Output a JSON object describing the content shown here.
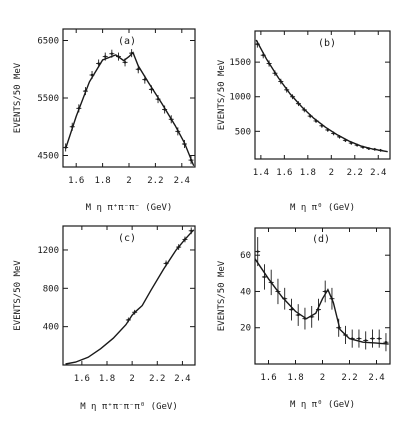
{
  "chart_data": [
    {
      "type": "scatter",
      "panel_label": "(a)",
      "xlabel": "M η π⁺π⁻π⁻ (GeV)",
      "ylabel": "EVENTS/50 MeV",
      "xlim": [
        1.5,
        2.5
      ],
      "ylim": [
        4300,
        6700
      ],
      "x_ticks": [
        1.6,
        1.8,
        2.0,
        2.2,
        2.4
      ],
      "x_tick_labels": [
        "1.6",
        "1.8",
        "2",
        "2.2",
        "2.4"
      ],
      "y_ticks": [
        4500,
        5500,
        6500
      ],
      "y_tick_labels": [
        "4500",
        "5500",
        "6500"
      ],
      "points": [
        {
          "x": 1.52,
          "y": 4640,
          "err": 70
        },
        {
          "x": 1.57,
          "y": 5000,
          "err": 70
        },
        {
          "x": 1.62,
          "y": 5320,
          "err": 70
        },
        {
          "x": 1.67,
          "y": 5620,
          "err": 70
        },
        {
          "x": 1.72,
          "y": 5900,
          "err": 70
        },
        {
          "x": 1.77,
          "y": 6100,
          "err": 70
        },
        {
          "x": 1.82,
          "y": 6220,
          "err": 70
        },
        {
          "x": 1.87,
          "y": 6270,
          "err": 70
        },
        {
          "x": 1.92,
          "y": 6220,
          "err": 70
        },
        {
          "x": 1.97,
          "y": 6120,
          "err": 70
        },
        {
          "x": 2.02,
          "y": 6280,
          "err": 70
        },
        {
          "x": 2.07,
          "y": 6000,
          "err": 70
        },
        {
          "x": 2.12,
          "y": 5820,
          "err": 70
        },
        {
          "x": 2.17,
          "y": 5650,
          "err": 70
        },
        {
          "x": 2.22,
          "y": 5480,
          "err": 70
        },
        {
          "x": 2.27,
          "y": 5300,
          "err": 70
        },
        {
          "x": 2.32,
          "y": 5130,
          "err": 70
        },
        {
          "x": 2.37,
          "y": 4920,
          "err": 70
        },
        {
          "x": 2.42,
          "y": 4700,
          "err": 70
        },
        {
          "x": 2.47,
          "y": 4420,
          "err": 70
        }
      ],
      "fit": [
        [
          1.52,
          4620
        ],
        [
          1.6,
          5180
        ],
        [
          1.7,
          5780
        ],
        [
          1.8,
          6160
        ],
        [
          1.9,
          6250
        ],
        [
          1.96,
          6150
        ],
        [
          2.0,
          6220
        ],
        [
          2.03,
          6290
        ],
        [
          2.07,
          6060
        ],
        [
          2.15,
          5760
        ],
        [
          2.25,
          5400
        ],
        [
          2.35,
          5020
        ],
        [
          2.42,
          4720
        ],
        [
          2.49,
          4320
        ]
      ]
    },
    {
      "type": "scatter",
      "panel_label": "(b)",
      "xlabel": "M η π⁰ (GeV)",
      "ylabel": "EVENTS/50 MeV",
      "xlim": [
        1.35,
        2.5
      ],
      "ylim": [
        100,
        1950
      ],
      "x_ticks": [
        1.4,
        1.6,
        1.8,
        2.0,
        2.2,
        2.4
      ],
      "x_tick_labels": [
        "1.4",
        "1.6",
        "1.8",
        "2",
        "2.2",
        "2.4"
      ],
      "y_ticks": [
        500,
        1000,
        1500
      ],
      "y_tick_labels": [
        "500",
        "1000",
        "1500"
      ],
      "points": [
        {
          "x": 1.37,
          "y": 1760,
          "err": 50
        },
        {
          "x": 1.42,
          "y": 1600,
          "err": 45
        },
        {
          "x": 1.47,
          "y": 1480,
          "err": 45
        },
        {
          "x": 1.52,
          "y": 1340,
          "err": 40
        },
        {
          "x": 1.57,
          "y": 1220,
          "err": 40
        },
        {
          "x": 1.62,
          "y": 1100,
          "err": 40
        },
        {
          "x": 1.67,
          "y": 1000,
          "err": 35
        },
        {
          "x": 1.72,
          "y": 900,
          "err": 35
        },
        {
          "x": 1.77,
          "y": 810,
          "err": 35
        },
        {
          "x": 1.82,
          "y": 720,
          "err": 30
        },
        {
          "x": 1.87,
          "y": 650,
          "err": 30
        },
        {
          "x": 1.92,
          "y": 580,
          "err": 30
        },
        {
          "x": 1.97,
          "y": 520,
          "err": 28
        },
        {
          "x": 2.02,
          "y": 470,
          "err": 28
        },
        {
          "x": 2.07,
          "y": 420,
          "err": 25
        },
        {
          "x": 2.12,
          "y": 370,
          "err": 25
        },
        {
          "x": 2.17,
          "y": 330,
          "err": 25
        },
        {
          "x": 2.22,
          "y": 300,
          "err": 22
        },
        {
          "x": 2.27,
          "y": 270,
          "err": 22
        },
        {
          "x": 2.32,
          "y": 250,
          "err": 20
        },
        {
          "x": 2.37,
          "y": 240,
          "err": 20
        },
        {
          "x": 2.42,
          "y": 225,
          "err": 20
        }
      ],
      "fit": [
        [
          1.36,
          1820
        ],
        [
          1.45,
          1540
        ],
        [
          1.55,
          1270
        ],
        [
          1.65,
          1040
        ],
        [
          1.75,
          850
        ],
        [
          1.85,
          690
        ],
        [
          1.95,
          560
        ],
        [
          2.05,
          450
        ],
        [
          2.15,
          360
        ],
        [
          2.25,
          290
        ],
        [
          2.35,
          245
        ],
        [
          2.48,
          205
        ]
      ]
    },
    {
      "type": "scatter",
      "panel_label": "(c)",
      "xlabel": "M η π⁺π⁻π⁻π⁰ (GeV)",
      "ylabel": "EVENTS/50 MeV",
      "xlim": [
        1.45,
        2.5
      ],
      "ylim": [
        0,
        1450
      ],
      "x_ticks": [
        1.6,
        1.8,
        2.0,
        2.2,
        2.4
      ],
      "x_tick_labels": [
        "1.6",
        "1.8",
        "2",
        "2.2",
        "2.4"
      ],
      "y_ticks": [
        400,
        800,
        1200
      ],
      "y_tick_labels": [
        "400",
        "800",
        "1200"
      ],
      "points": [
        {
          "x": 1.97,
          "y": 470,
          "err": 25
        },
        {
          "x": 2.02,
          "y": 550,
          "err": 25
        },
        {
          "x": 2.27,
          "y": 1060,
          "err": 30
        },
        {
          "x": 2.37,
          "y": 1230,
          "err": 30
        },
        {
          "x": 2.42,
          "y": 1310,
          "err": 30
        },
        {
          "x": 2.47,
          "y": 1400,
          "err": 35
        }
      ],
      "fit": [
        [
          1.47,
          10
        ],
        [
          1.55,
          30
        ],
        [
          1.65,
          80
        ],
        [
          1.75,
          170
        ],
        [
          1.85,
          280
        ],
        [
          1.95,
          420
        ],
        [
          2.0,
          520
        ],
        [
          2.03,
          560
        ],
        [
          2.08,
          620
        ],
        [
          2.15,
          780
        ],
        [
          2.25,
          1000
        ],
        [
          2.35,
          1200
        ],
        [
          2.42,
          1310
        ],
        [
          2.49,
          1410
        ]
      ]
    },
    {
      "type": "scatter",
      "panel_label": "(d)",
      "xlabel": "M η π⁰ (GeV)",
      "ylabel": "EVENTS/50 MeV",
      "xlim": [
        1.5,
        2.5
      ],
      "ylim": [
        0,
        75
      ],
      "x_ticks": [
        1.6,
        1.8,
        2.0,
        2.2,
        2.4
      ],
      "x_tick_labels": [
        "1.6",
        "1.8",
        "2",
        "2.2",
        "2.4"
      ],
      "y_ticks": [
        20,
        40,
        60
      ],
      "y_tick_labels": [
        "20",
        "40",
        "60"
      ],
      "points": [
        {
          "x": 1.52,
          "y": 62,
          "err": 8
        },
        {
          "x": 1.57,
          "y": 48,
          "err": 7
        },
        {
          "x": 1.62,
          "y": 45,
          "err": 7
        },
        {
          "x": 1.67,
          "y": 40,
          "err": 7
        },
        {
          "x": 1.72,
          "y": 36,
          "err": 6
        },
        {
          "x": 1.77,
          "y": 30,
          "err": 6
        },
        {
          "x": 1.82,
          "y": 27,
          "err": 6
        },
        {
          "x": 1.87,
          "y": 25,
          "err": 6
        },
        {
          "x": 1.92,
          "y": 26,
          "err": 6
        },
        {
          "x": 1.97,
          "y": 30,
          "err": 6
        },
        {
          "x": 2.02,
          "y": 40,
          "err": 6
        },
        {
          "x": 2.07,
          "y": 36,
          "err": 6
        },
        {
          "x": 2.12,
          "y": 20,
          "err": 5
        },
        {
          "x": 2.17,
          "y": 16,
          "err": 5
        },
        {
          "x": 2.22,
          "y": 14,
          "err": 5
        },
        {
          "x": 2.27,
          "y": 14,
          "err": 5
        },
        {
          "x": 2.32,
          "y": 13,
          "err": 5
        },
        {
          "x": 2.37,
          "y": 14,
          "err": 5
        },
        {
          "x": 2.42,
          "y": 14,
          "err": 5
        },
        {
          "x": 2.47,
          "y": 12,
          "err": 5
        }
      ],
      "fit": [
        [
          1.5,
          58
        ],
        [
          1.6,
          47
        ],
        [
          1.7,
          37
        ],
        [
          1.8,
          29
        ],
        [
          1.88,
          25
        ],
        [
          1.95,
          28
        ],
        [
          2.0,
          36
        ],
        [
          2.04,
          41
        ],
        [
          2.08,
          34
        ],
        [
          2.13,
          19
        ],
        [
          2.2,
          14
        ],
        [
          2.3,
          12
        ],
        [
          2.4,
          11.5
        ],
        [
          2.49,
          11
        ]
      ]
    }
  ]
}
